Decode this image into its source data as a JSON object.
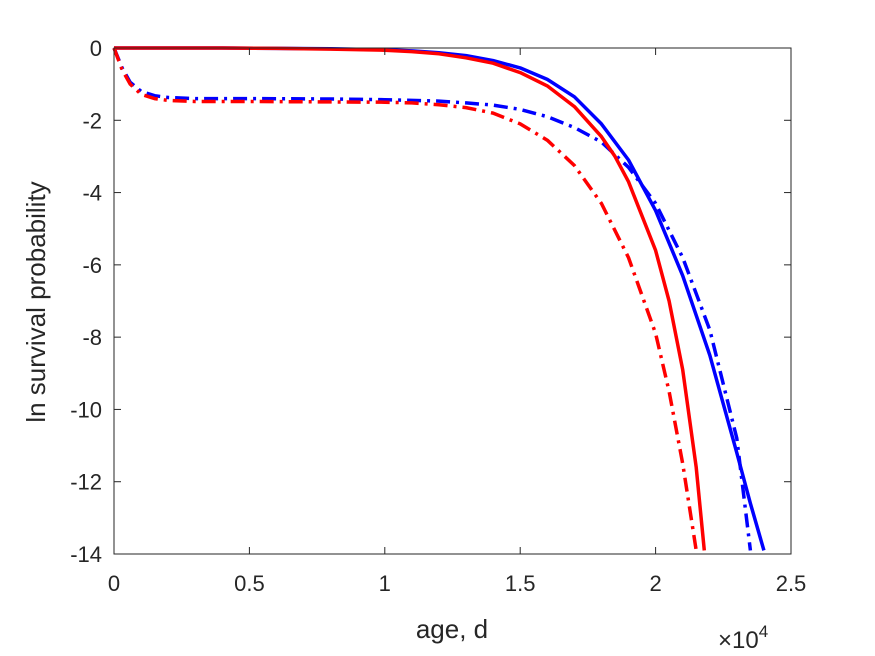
{
  "chart_data": {
    "type": "line",
    "title": "",
    "xlabel": "age, d",
    "ylabel": "ln survival probability",
    "x_exponent_label": "×10",
    "x_exponent_power": "4",
    "xlim": [
      0,
      25000
    ],
    "ylim": [
      -14,
      0
    ],
    "xticks": [
      0,
      5000,
      10000,
      15000,
      20000,
      25000
    ],
    "xtick_labels": [
      "0",
      "0.5",
      "1",
      "1.5",
      "2",
      "2.5"
    ],
    "yticks": [
      0,
      -2,
      -4,
      -6,
      -8,
      -10,
      -12,
      -14
    ],
    "ytick_labels": [
      "0",
      "-2",
      "-4",
      "-6",
      "-8",
      "-10",
      "-12",
      "-14"
    ],
    "grid": false,
    "box": true,
    "colors": {
      "axis": "#262626",
      "blue": "#0000ff",
      "red": "#ff0000"
    },
    "series": [
      {
        "color": "#0000ff",
        "style": "solid",
        "x": [
          0,
          2000,
          4000,
          6000,
          8000,
          10000,
          11000,
          12000,
          13000,
          14000,
          15000,
          16000,
          17000,
          18000,
          19000,
          20000,
          21000,
          22000,
          23000,
          23500,
          24000
        ],
        "y": [
          0,
          0,
          0,
          -0.01,
          -0.02,
          -0.05,
          -0.08,
          -0.13,
          -0.21,
          -0.35,
          -0.55,
          -0.87,
          -1.35,
          -2.1,
          -3.1,
          -4.5,
          -6.3,
          -8.5,
          -11.2,
          -12.6,
          -13.9
        ]
      },
      {
        "color": "#0000ff",
        "style": "dashdot",
        "x": [
          0,
          300,
          600,
          1000,
          1500,
          2000,
          3000,
          5000,
          8000,
          10000,
          12000,
          13000,
          14000,
          15000,
          16000,
          17000,
          18000,
          19000,
          20000,
          21000,
          22000,
          23000,
          23500
        ],
        "y": [
          0,
          -0.55,
          -0.95,
          -1.2,
          -1.32,
          -1.37,
          -1.4,
          -1.4,
          -1.41,
          -1.43,
          -1.47,
          -1.52,
          -1.58,
          -1.7,
          -1.9,
          -2.2,
          -2.6,
          -3.3,
          -4.3,
          -5.8,
          -7.8,
          -10.8,
          -13.9
        ]
      },
      {
        "color": "#ff0000",
        "style": "solid",
        "x": [
          0,
          2000,
          4000,
          6000,
          8000,
          10000,
          11000,
          12000,
          13000,
          14000,
          15000,
          16000,
          17000,
          18000,
          18500,
          19000,
          20000,
          20500,
          21000,
          21500,
          21800
        ],
        "y": [
          0,
          0,
          0,
          -0.01,
          -0.03,
          -0.06,
          -0.1,
          -0.16,
          -0.27,
          -0.42,
          -0.68,
          -1.05,
          -1.62,
          -2.45,
          -3.0,
          -3.7,
          -5.6,
          -7.0,
          -8.9,
          -11.6,
          -13.9
        ]
      },
      {
        "color": "#ff0000",
        "style": "dashdot",
        "x": [
          0,
          300,
          600,
          1000,
          1500,
          2000,
          3000,
          5000,
          8000,
          10000,
          11000,
          12000,
          13000,
          14000,
          15000,
          16000,
          17000,
          18000,
          19000,
          20000,
          20500,
          21000,
          21500
        ],
        "y": [
          0,
          -0.6,
          -1.0,
          -1.28,
          -1.4,
          -1.45,
          -1.48,
          -1.48,
          -1.49,
          -1.5,
          -1.52,
          -1.57,
          -1.65,
          -1.8,
          -2.1,
          -2.55,
          -3.25,
          -4.3,
          -5.8,
          -7.9,
          -9.5,
          -11.5,
          -13.9
        ]
      }
    ]
  }
}
